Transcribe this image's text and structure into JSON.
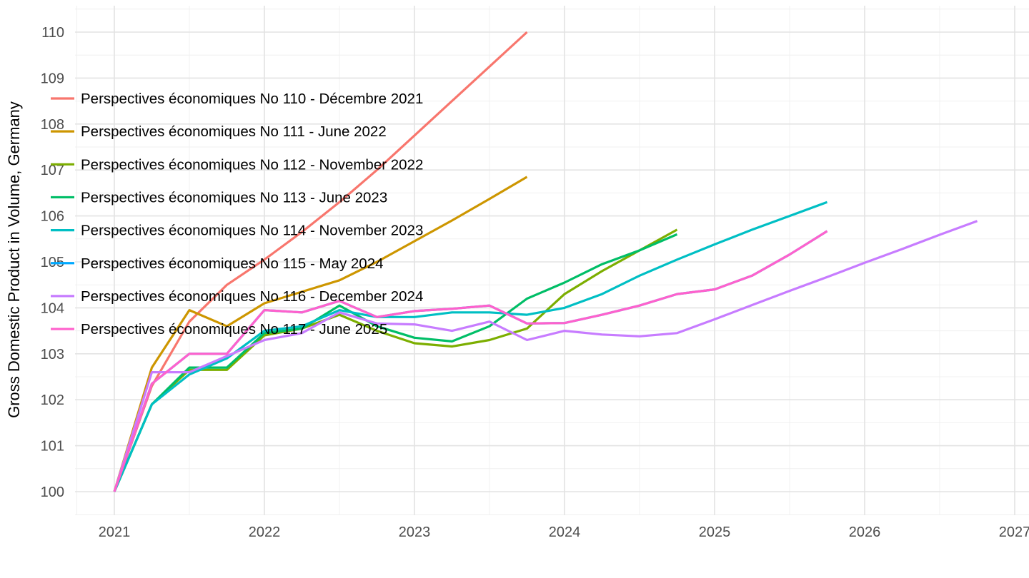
{
  "page": {
    "background": "#FFFFFF"
  },
  "chart_data": {
    "type": "line",
    "title": "",
    "xlabel": "",
    "ylabel": "Gross Domestic Product in Volume, Germany",
    "x_start": 2021,
    "x_step": 0.25,
    "xlim": [
      2020.7,
      2027.1
    ],
    "ylim": [
      99.5,
      110.5
    ],
    "x_ticks": [
      "2021",
      "2022",
      "2023",
      "2024",
      "2025",
      "2026",
      "2027"
    ],
    "x_tick_values": [
      2021,
      2022,
      2023,
      2024,
      2025,
      2026,
      2027
    ],
    "x_minor_values": [
      2020.75,
      2021.5,
      2022.5,
      2023.5,
      2024.5,
      2025.5,
      2026.5
    ],
    "y_ticks": [
      "100",
      "101",
      "102",
      "103",
      "104",
      "105",
      "106",
      "107",
      "108",
      "109",
      "110"
    ],
    "y_tick_values": [
      100,
      101,
      102,
      103,
      104,
      105,
      106,
      107,
      108,
      109,
      110
    ],
    "y_minor_values": [
      99.5,
      100.5,
      101.5,
      102.5,
      103.5,
      104.5,
      105.5,
      106.5,
      107.5,
      108.5,
      109.5,
      110.5
    ],
    "grid": true,
    "legend_position": "inside-top-left",
    "tick_label_color": "#4D4D4D",
    "text_color": "#000000",
    "grid_major_color": "#E3E3E3",
    "grid_minor_color": "#F0F0F0",
    "line_width": 3.2,
    "series": [
      {
        "name": "Perspectives économiques No 110 - Décembre 2021",
        "color": "#F8766D",
        "values": [
          100,
          102.3,
          103.7,
          104.5,
          105.05,
          105.65,
          106.3,
          107.0,
          107.75,
          108.5,
          109.25,
          110.0
        ]
      },
      {
        "name": "Perspectives économiques No 111 - June 2022",
        "color": "#CD9600",
        "values": [
          100,
          102.7,
          103.95,
          103.6,
          104.1,
          104.35,
          104.6,
          105.0,
          105.45,
          105.9,
          106.37,
          106.85
        ]
      },
      {
        "name": "Perspectives économiques No 112 - November 2022",
        "color": "#7CAE00",
        "values": [
          100,
          101.9,
          102.65,
          102.65,
          103.4,
          103.55,
          103.85,
          103.5,
          103.23,
          103.16,
          103.3,
          103.55,
          104.3,
          104.8,
          105.25,
          105.7
        ]
      },
      {
        "name": "Perspectives économiques No 113 - June 2023",
        "color": "#00BE67",
        "values": [
          100,
          101.9,
          102.7,
          102.7,
          103.45,
          103.55,
          104.05,
          103.6,
          103.35,
          103.27,
          103.6,
          104.2,
          104.55,
          104.95,
          105.25,
          105.6
        ]
      },
      {
        "name": "Perspectives économiques No 114 - November 2023",
        "color": "#00BFC4",
        "values": [
          100,
          101.9,
          102.55,
          102.9,
          103.5,
          103.6,
          103.95,
          103.8,
          103.8,
          103.9,
          103.9,
          103.85,
          104.0,
          104.3,
          104.7,
          105.05,
          105.38,
          105.7,
          106.0,
          106.3
        ]
      },
      {
        "name": "Perspectives économiques No 115 - May 2024",
        "color": "#00A9FF",
        "values": [
          100,
          102.35,
          103.0,
          103.0,
          103.95,
          103.9,
          104.15,
          103.8,
          103.93,
          103.98,
          104.05,
          103.66,
          103.67,
          103.85,
          104.05,
          104.3,
          104.4,
          104.7,
          105.16,
          105.67
        ]
      },
      {
        "name": "Perspectives économiques No 116 - December 2024",
        "color": "#C77CFF",
        "values": [
          100,
          102.6,
          102.6,
          102.95,
          103.3,
          103.45,
          103.9,
          103.66,
          103.64,
          103.5,
          103.7,
          103.3,
          103.5,
          103.42,
          103.38,
          103.45,
          103.75,
          104.06,
          104.37,
          104.67,
          104.98,
          105.28,
          105.59,
          105.89
        ]
      },
      {
        "name": "Perspectives économiques No 117 - June 2025",
        "color": "#FF61CC",
        "values": [
          100,
          102.35,
          103.0,
          103.0,
          103.95,
          103.9,
          104.15,
          103.8,
          103.93,
          103.98,
          104.05,
          103.66,
          103.67,
          103.85,
          104.05,
          104.3,
          104.4,
          104.7,
          105.16,
          105.67
        ]
      }
    ]
  }
}
